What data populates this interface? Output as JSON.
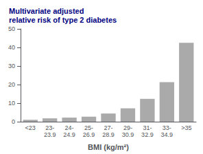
{
  "chart_data": {
    "type": "bar",
    "title": "Multivariate adjusted\nrelative risk of type 2 diabetes",
    "xlabel": "BMI (kg/m²)",
    "categories": [
      "<23",
      "23-\n23.9",
      "24-\n24.9",
      "25-\n26.9",
      "27-\n28.9",
      "29-\n30.9",
      "31-\n32.9",
      "33-\n34.9",
      ">35"
    ],
    "values": [
      1.0,
      1.8,
      2.2,
      2.7,
      4.4,
      7.2,
      12.3,
      21.3,
      42.5
    ],
    "color": "#aaaaaa",
    "ylim": [
      0,
      50
    ],
    "yticks": [
      0,
      10,
      20,
      30,
      40,
      50
    ],
    "grid": false
  }
}
